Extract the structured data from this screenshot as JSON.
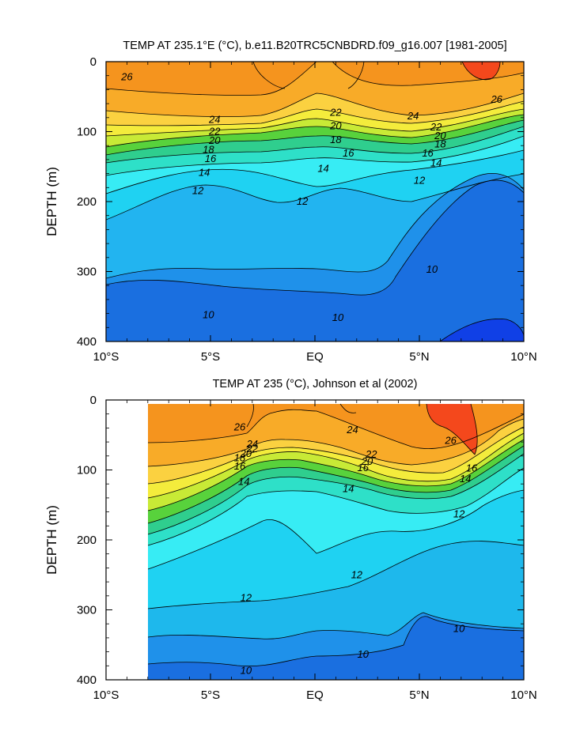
{
  "chart_data": [
    {
      "type": "contour",
      "title": "TEMP AT 235.1°E (°C), b.e11.B20TRC5CNBDRD.f09_g16.007 [1981-2005]",
      "ylabel": "DEPTH (m)",
      "xlim": [
        -10,
        10
      ],
      "ylim": [
        400,
        0
      ],
      "x_ticks": [
        "10°S",
        "5°S",
        "EQ",
        "5°N",
        "10°N"
      ],
      "y_ticks": [
        "0",
        "100",
        "200",
        "300",
        "400"
      ],
      "contour_interval": 1,
      "contour_labels": [
        {
          "value": "26",
          "lat": -9.0,
          "depth": 22
        },
        {
          "value": "26",
          "lat": 8.7,
          "depth": 54
        },
        {
          "value": "24",
          "lat": -4.8,
          "depth": 83
        },
        {
          "value": "24",
          "lat": 4.7,
          "depth": 78
        },
        {
          "value": "22",
          "lat": -4.8,
          "depth": 100
        },
        {
          "value": "22",
          "lat": 1.0,
          "depth": 73
        },
        {
          "value": "22",
          "lat": 5.8,
          "depth": 94
        },
        {
          "value": "20",
          "lat": -4.8,
          "depth": 113
        },
        {
          "value": "20",
          "lat": 1.0,
          "depth": 92
        },
        {
          "value": "20",
          "lat": 6.0,
          "depth": 106
        },
        {
          "value": "18",
          "lat": -5.1,
          "depth": 126
        },
        {
          "value": "18",
          "lat": 1.0,
          "depth": 112
        },
        {
          "value": "18",
          "lat": 6.0,
          "depth": 118
        },
        {
          "value": "16",
          "lat": -5.0,
          "depth": 139
        },
        {
          "value": "16",
          "lat": 1.6,
          "depth": 131
        },
        {
          "value": "16",
          "lat": 5.4,
          "depth": 131
        },
        {
          "value": "14",
          "lat": -5.3,
          "depth": 159
        },
        {
          "value": "14",
          "lat": 0.4,
          "depth": 153
        },
        {
          "value": "14",
          "lat": 5.8,
          "depth": 145
        },
        {
          "value": "12",
          "lat": -5.6,
          "depth": 185
        },
        {
          "value": "12",
          "lat": -0.6,
          "depth": 200
        },
        {
          "value": "12",
          "lat": 5.0,
          "depth": 170
        },
        {
          "value": "10",
          "lat": -5.1,
          "depth": 362
        },
        {
          "value": "10",
          "lat": 1.1,
          "depth": 366
        },
        {
          "value": "10",
          "lat": 5.6,
          "depth": 297
        }
      ]
    },
    {
      "type": "contour",
      "title": "TEMP AT 235 (°C), Johnson et al (2002)",
      "ylabel": "DEPTH (m)",
      "xlim": [
        -10,
        10
      ],
      "ylim": [
        400,
        0
      ],
      "data_xrange": [
        -8,
        10
      ],
      "x_ticks": [
        "10°S",
        "5°S",
        "EQ",
        "5°N",
        "10°N"
      ],
      "y_ticks": [
        "0",
        "100",
        "200",
        "300",
        "400"
      ],
      "contour_interval": 1,
      "contour_labels": [
        {
          "value": "26",
          "lat": -3.6,
          "depth": 39
        },
        {
          "value": "26",
          "lat": 6.5,
          "depth": 58
        },
        {
          "value": "24",
          "lat": -3.0,
          "depth": 63
        },
        {
          "value": "24",
          "lat": 1.8,
          "depth": 43
        },
        {
          "value": "22",
          "lat": -3.0,
          "depth": 70
        },
        {
          "value": "22",
          "lat": 2.7,
          "depth": 78
        },
        {
          "value": "20",
          "lat": -3.3,
          "depth": 77
        },
        {
          "value": "20",
          "lat": 2.5,
          "depth": 88
        },
        {
          "value": "18",
          "lat": -3.6,
          "depth": 83
        },
        {
          "value": "16",
          "lat": -3.6,
          "depth": 95
        },
        {
          "value": "16",
          "lat": 2.3,
          "depth": 97
        },
        {
          "value": "16",
          "lat": 7.5,
          "depth": 98
        },
        {
          "value": "14",
          "lat": -3.4,
          "depth": 117
        },
        {
          "value": "14",
          "lat": 1.6,
          "depth": 127
        },
        {
          "value": "14",
          "lat": 7.2,
          "depth": 113
        },
        {
          "value": "12",
          "lat": 6.9,
          "depth": 163
        },
        {
          "value": "12",
          "lat": 2.0,
          "depth": 250
        },
        {
          "value": "12",
          "lat": -3.3,
          "depth": 283
        },
        {
          "value": "10",
          "lat": 6.9,
          "depth": 327
        },
        {
          "value": "10",
          "lat": 2.3,
          "depth": 364
        },
        {
          "value": "10",
          "lat": -3.3,
          "depth": 387
        }
      ]
    }
  ]
}
